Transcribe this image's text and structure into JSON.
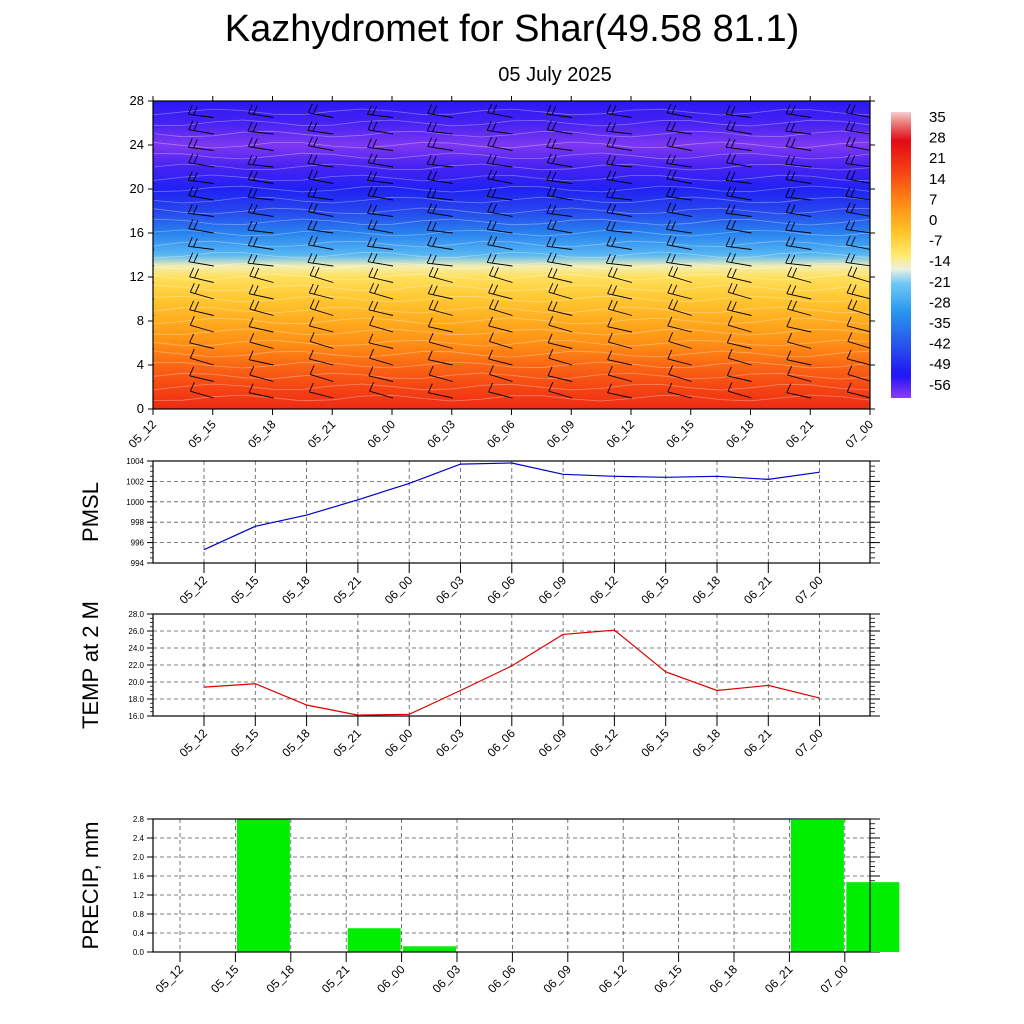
{
  "title": "Kazhydromet for Shar(49.58 81.1)",
  "subtitle": "05 July 2025",
  "colors": {
    "pmsl_line": "#0000cc",
    "temp_line": "#dd0000",
    "precip_bar": "#00ee00",
    "grid": "#555555"
  },
  "time_labels": [
    "05_12",
    "05_15",
    "05_18",
    "05_21",
    "06_00",
    "06_03",
    "06_06",
    "06_09",
    "06_12",
    "06_15",
    "06_18",
    "06_21",
    "07_00"
  ],
  "chart_data": [
    {
      "type": "heatmap",
      "title": "",
      "xlabel": "",
      "ylabel": "",
      "x": [
        "05_12",
        "05_15",
        "05_18",
        "05_21",
        "06_00",
        "06_03",
        "06_06",
        "06_09",
        "06_12",
        "06_15",
        "06_18",
        "06_21",
        "07_00"
      ],
      "y_ticks": [
        0,
        4,
        8,
        12,
        16,
        20,
        24,
        28
      ],
      "ylim": [
        0,
        28
      ],
      "colorbar_labels": [
        "35",
        "28",
        "21",
        "14",
        "7",
        "0",
        "-7",
        "-14",
        "-21",
        "-28",
        "-35",
        "-42",
        "-49",
        "-56"
      ],
      "colorbar_range": [
        -60,
        38
      ],
      "profile_levels": [
        0,
        2,
        4,
        6,
        8,
        10,
        12,
        13,
        14,
        16,
        18,
        20,
        22,
        24,
        26,
        28
      ],
      "profile_values": [
        22,
        17,
        12,
        6,
        1,
        -4,
        -9,
        -14,
        -24,
        -34,
        -44,
        -50,
        -55,
        -59,
        -55,
        -53
      ],
      "wind_barbs": "present"
    },
    {
      "type": "line",
      "ylabel": "PMSL",
      "x": [
        "05_12",
        "05_15",
        "05_18",
        "05_21",
        "06_00",
        "06_03",
        "06_06",
        "06_09",
        "06_12",
        "06_15",
        "06_18",
        "06_21",
        "07_00"
      ],
      "yticks": [
        "994",
        "996",
        "998",
        "1000",
        "1002",
        "1004"
      ],
      "ylim": [
        994,
        1004
      ],
      "series": [
        {
          "values": [
            995.3,
            997.6,
            998.7,
            1000.2,
            1001.8,
            1003.7,
            1003.8,
            1002.7,
            1002.5,
            1002.4,
            1002.5,
            1002.2,
            1002.9
          ]
        }
      ]
    },
    {
      "type": "line",
      "ylabel": "TEMP at 2 M",
      "x": [
        "05_12",
        "05_15",
        "05_18",
        "05_21",
        "06_00",
        "06_03",
        "06_06",
        "06_09",
        "06_12",
        "06_15",
        "06_18",
        "06_21",
        "07_00"
      ],
      "yticks": [
        "16.0",
        "18.0",
        "20.0",
        "22.0",
        "24.0",
        "26.0",
        "28.0"
      ],
      "ylim": [
        16,
        28
      ],
      "series": [
        {
          "values": [
            19.4,
            19.8,
            17.3,
            16.1,
            16.2,
            19.0,
            21.9,
            25.6,
            26.1,
            21.2,
            19.0,
            19.6,
            18.1
          ]
        }
      ]
    },
    {
      "type": "bar",
      "ylabel": "PRECIP, mm",
      "categories": [
        "05_12",
        "05_15",
        "05_18",
        "05_21",
        "06_00",
        "06_03",
        "06_06",
        "06_09",
        "06_12",
        "06_15",
        "06_18",
        "06_21",
        "07_00"
      ],
      "yticks": [
        "0.0",
        "0.4",
        "0.8",
        "1.2",
        "1.6",
        "2.0",
        "2.4",
        "2.8"
      ],
      "ylim": [
        0,
        2.8
      ],
      "values": [
        0,
        2.8,
        0,
        0.5,
        0.12,
        0,
        0,
        0,
        0,
        0,
        0,
        2.78,
        1.47
      ]
    }
  ]
}
